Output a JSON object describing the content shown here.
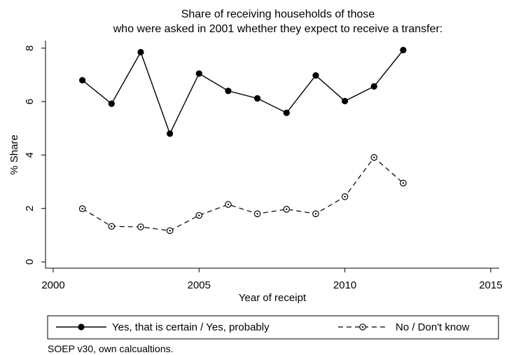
{
  "chart_data": {
    "type": "line",
    "title": "Share of receiving households of those",
    "subtitle": "who were asked in 2001 whether they expect to receive a transfer:",
    "xlabel": "Year of receipt",
    "ylabel": "% Share",
    "xlim": [
      2000,
      2015
    ],
    "ylim": [
      0,
      8
    ],
    "xticks": [
      2000,
      2005,
      2010,
      2015
    ],
    "yticks": [
      0,
      2,
      4,
      6,
      8
    ],
    "grid": false,
    "legend_position": "bottom",
    "series": [
      {
        "name": "Yes, that is certain / Yes, probably",
        "style": "solid",
        "marker": "filled-circle",
        "color": "#000000",
        "x": [
          2001,
          2002,
          2003,
          2004,
          2005,
          2006,
          2007,
          2008,
          2009,
          2010,
          2011,
          2012
        ],
        "values": [
          6.8,
          5.92,
          7.85,
          4.8,
          7.05,
          6.4,
          6.12,
          5.58,
          6.98,
          6.02,
          6.57,
          7.93
        ]
      },
      {
        "name": "No / Don't know",
        "style": "dashed",
        "marker": "hollow-circle",
        "color": "#000000",
        "x": [
          2001,
          2002,
          2003,
          2004,
          2005,
          2006,
          2007,
          2008,
          2009,
          2010,
          2011,
          2012
        ],
        "values": [
          1.99,
          1.33,
          1.31,
          1.17,
          1.74,
          2.15,
          1.8,
          1.97,
          1.8,
          2.44,
          3.91,
          2.95
        ]
      }
    ],
    "note": "SOEP v30, own calcualtions."
  }
}
